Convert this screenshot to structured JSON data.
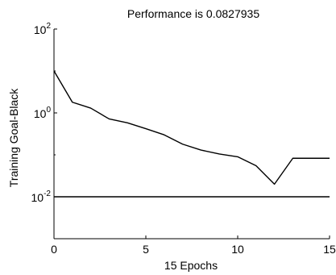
{
  "chart_data": {
    "type": "line",
    "title": "Performance is 0.0827935",
    "xlabel": "15 Epochs",
    "ylabel": "Training  Goal-Black",
    "xlim": [
      0,
      15
    ],
    "ylim": [
      0.001,
      100
    ],
    "yscale": "log",
    "grid": false,
    "x_ticks": [
      {
        "value": 0,
        "label": "0"
      },
      {
        "value": 5,
        "label": "5"
      },
      {
        "value": 10,
        "label": "10"
      },
      {
        "value": 15,
        "label": "15"
      }
    ],
    "y_ticks": [
      {
        "value": 100,
        "base": "10",
        "exp": "2"
      },
      {
        "value": 1,
        "base": "10",
        "exp": "0"
      },
      {
        "value": 0.01,
        "base": "10",
        "exp": "-2"
      }
    ],
    "series": [
      {
        "color": "#000000",
        "x": [
          0,
          1,
          2,
          3,
          4,
          5,
          6,
          7,
          8,
          9,
          10,
          11,
          12,
          13,
          14,
          15
        ],
        "values": [
          10,
          1.8,
          1.3,
          0.72,
          0.58,
          0.42,
          0.3,
          0.18,
          0.13,
          0.105,
          0.09,
          0.055,
          0.02,
          0.0828,
          0.0828,
          0.0828
        ]
      },
      {
        "color": "#000000",
        "x": [
          0,
          15
        ],
        "values": [
          0.01,
          0.01
        ]
      }
    ]
  }
}
